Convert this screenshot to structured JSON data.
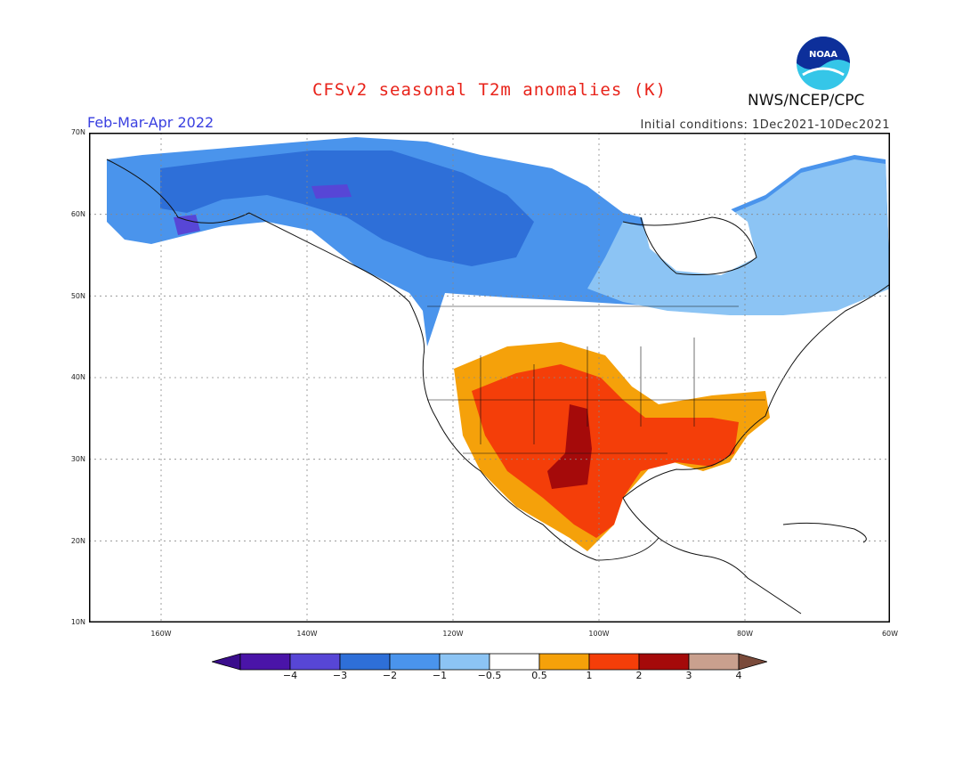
{
  "header": {
    "title": "CFSv2 seasonal T2m anomalies (K)",
    "period": "Feb-Mar-Apr 2022",
    "initial_conditions": "Initial conditions: 1Dec2021-10Dec2021",
    "agency": "NWS/NCEP/CPC",
    "logo_text": "NOAA"
  },
  "map": {
    "lat_labels": [
      "70N",
      "60N",
      "50N",
      "40N",
      "30N",
      "20N",
      "10N"
    ],
    "lon_labels": [
      "160W",
      "140W",
      "120W",
      "100W",
      "80W",
      "60W"
    ],
    "regions": [
      {
        "name": "alaska-yukon",
        "category": "-1"
      },
      {
        "name": "western-canada",
        "category": "-2"
      },
      {
        "name": "southern-alaska",
        "category": "-3"
      },
      {
        "name": "eastern-canada",
        "category": "-0.5"
      },
      {
        "name": "southwest-us",
        "category": "1"
      },
      {
        "name": "southern-plains-mexico",
        "category": "2"
      },
      {
        "name": "texas-core",
        "category": "3"
      },
      {
        "name": "southeast-us",
        "category": "1"
      }
    ]
  },
  "colorbar": {
    "labels": [
      "-4",
      "-3",
      "-2",
      "-1",
      "-0.5",
      "0.5",
      "1",
      "2",
      "3",
      "4"
    ],
    "colors": [
      "#4a14a8",
      "#5746d6",
      "#2e6fd8",
      "#4a94ec",
      "#8cc4f4",
      "#ffffff",
      "#f5a10a",
      "#f43e09",
      "#a50a0a",
      "#c9a08e"
    ],
    "low_extend_color": "#3a0d8c",
    "high_extend_color": "#7a4a3a"
  }
}
